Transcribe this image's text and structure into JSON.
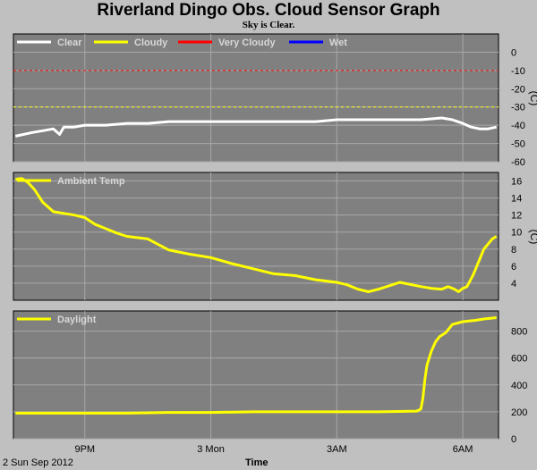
{
  "title": "Riverland Dingo Obs. Cloud Sensor Graph",
  "subtitle": "Sky is Clear.",
  "date_label": "2 Sun Sep 2012",
  "xaxis_title": "Time",
  "x_tick_labels": [
    "9PM",
    "3 Mon",
    "3AM",
    "6AM"
  ],
  "colors": {
    "background": "#c0c0c0",
    "plot_bg": "#808080",
    "grid": "#a8a8a8",
    "clear": "#ffffff",
    "cloudy": "#ffff00",
    "very_cloudy": "#ff0000",
    "wet": "#0000ff"
  },
  "chart_data": [
    {
      "type": "line",
      "name": "sky-temperature",
      "legend": [
        "Clear",
        "Cloudy",
        "Very Cloudy",
        "Wet"
      ],
      "ylabel": "(C)",
      "ylim": [
        -60,
        10
      ],
      "yticks": [
        0,
        -10,
        -20,
        -30,
        -40,
        -50,
        -60
      ],
      "thresholds": [
        {
          "value": -10,
          "color": "#ff0000"
        },
        {
          "value": -30,
          "color": "#ffff00"
        }
      ],
      "series": [
        {
          "name": "Clear",
          "color": "#ffffff",
          "x": [
            19.35,
            19.75,
            20.0,
            20.25,
            20.4,
            20.5,
            20.75,
            21.0,
            21.5,
            22.0,
            22.5,
            23.0,
            23.5,
            24.0,
            24.5,
            25.0,
            25.5,
            26.0,
            26.5,
            27.0,
            27.5,
            28.0,
            28.5,
            29.0,
            29.5,
            29.75,
            30.0,
            30.2,
            30.4,
            30.6,
            30.8
          ],
          "y": [
            -46,
            -44,
            -43,
            -42,
            -45,
            -41,
            -41,
            -40,
            -40,
            -39,
            -39,
            -38,
            -38,
            -38,
            -38,
            -38,
            -38,
            -38,
            -38,
            -37,
            -37,
            -37,
            -37,
            -37,
            -36,
            -37,
            -39,
            -41,
            -42,
            -42,
            -41
          ]
        },
        {
          "name": "Cloudy",
          "color": "#ffff00",
          "x": [],
          "y": []
        },
        {
          "name": "Very Cloudy",
          "color": "#ff0000",
          "x": [],
          "y": []
        },
        {
          "name": "Wet",
          "color": "#0000ff",
          "x": [],
          "y": []
        }
      ]
    },
    {
      "type": "line",
      "name": "ambient-temperature",
      "legend": [
        "Ambient Temp"
      ],
      "ylabel": "(C)",
      "ylim": [
        2,
        17
      ],
      "yticks": [
        16,
        14,
        12,
        10,
        8,
        6,
        4
      ],
      "series": [
        {
          "name": "Ambient Temp",
          "color": "#ffff00",
          "x": [
            19.35,
            19.5,
            19.65,
            19.8,
            20.0,
            20.25,
            20.5,
            20.75,
            21.0,
            21.25,
            21.5,
            21.75,
            22.0,
            22.5,
            23.0,
            23.5,
            24.0,
            24.5,
            25.0,
            25.5,
            26.0,
            26.5,
            27.0,
            27.25,
            27.5,
            27.75,
            28.0,
            28.5,
            29.0,
            29.25,
            29.5,
            29.65,
            29.8,
            29.9,
            30.0,
            30.1,
            30.25,
            30.5,
            30.7,
            30.8
          ],
          "y": [
            16.2,
            16.3,
            15.8,
            15.0,
            13.5,
            12.4,
            12.2,
            12.0,
            11.7,
            10.9,
            10.4,
            9.9,
            9.5,
            9.2,
            7.9,
            7.4,
            7.0,
            6.3,
            5.7,
            5.1,
            4.9,
            4.4,
            4.1,
            3.8,
            3.3,
            3.0,
            3.3,
            4.1,
            3.6,
            3.4,
            3.3,
            3.6,
            3.3,
            3.0,
            3.4,
            3.6,
            5.0,
            8.0,
            9.2,
            9.5
          ]
        }
      ]
    },
    {
      "type": "line",
      "name": "daylight",
      "legend": [
        "Daylight"
      ],
      "ylabel": "",
      "ylim": [
        0,
        950
      ],
      "yticks": [
        800,
        600,
        400,
        200,
        0
      ],
      "series": [
        {
          "name": "Daylight",
          "color": "#ffff00",
          "x": [
            19.35,
            20.0,
            21.0,
            22.0,
            23.0,
            24.0,
            25.0,
            26.0,
            27.0,
            28.0,
            28.9,
            29.0,
            29.05,
            29.1,
            29.15,
            29.25,
            29.35,
            29.45,
            29.6,
            29.75,
            30.0,
            30.3,
            30.5,
            30.8
          ],
          "y": [
            190,
            190,
            190,
            190,
            195,
            195,
            200,
            200,
            200,
            200,
            205,
            220,
            300,
            450,
            550,
            650,
            720,
            760,
            790,
            850,
            870,
            880,
            890,
            900
          ]
        }
      ]
    }
  ]
}
